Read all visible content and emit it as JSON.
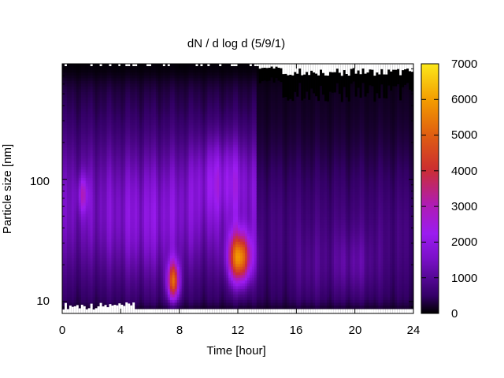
{
  "chart_data": {
    "type": "heatmap",
    "title": "dN / d log d (5/9/1)",
    "xlabel": "Time [hour]",
    "ylabel": "Particle size [nm]",
    "xlim": [
      0,
      24
    ],
    "ylim_nm": [
      8.0,
      880
    ],
    "y_scale": "log",
    "x_ticks": [
      0,
      4,
      8,
      12,
      16,
      20,
      24
    ],
    "x_tick_labels": [
      "0",
      "4",
      "8",
      "12",
      "16",
      "20",
      "24"
    ],
    "y_ticks": [
      10,
      100
    ],
    "y_tick_labels": [
      "10",
      "100"
    ],
    "colorbar": {
      "range": [
        0,
        7000
      ],
      "ticks": [
        0,
        1000,
        2000,
        3000,
        4000,
        5000,
        6000,
        7000
      ],
      "tick_labels": [
        "0",
        "1000",
        "2000",
        "3000",
        "4000",
        "5000",
        "6000",
        "7000"
      ],
      "colormap": [
        "#000000",
        "#330066",
        "#7a10c8",
        "#9b1cf0",
        "#b01cb0",
        "#cc2f2f",
        "#e06010",
        "#f39a00",
        "#fce81a"
      ]
    },
    "grid": false,
    "legend": "colorbar-right",
    "features": [
      {
        "t_hour": 7.6,
        "size_nm": 14,
        "value": 5000
      },
      {
        "t_hour": 12.0,
        "size_nm": 22,
        "value": 5600
      },
      {
        "t_hour": 1.4,
        "size_nm": 75,
        "value": 3000
      },
      {
        "t_hour": 11.0,
        "size_nm": 100,
        "value": 2400
      }
    ]
  }
}
